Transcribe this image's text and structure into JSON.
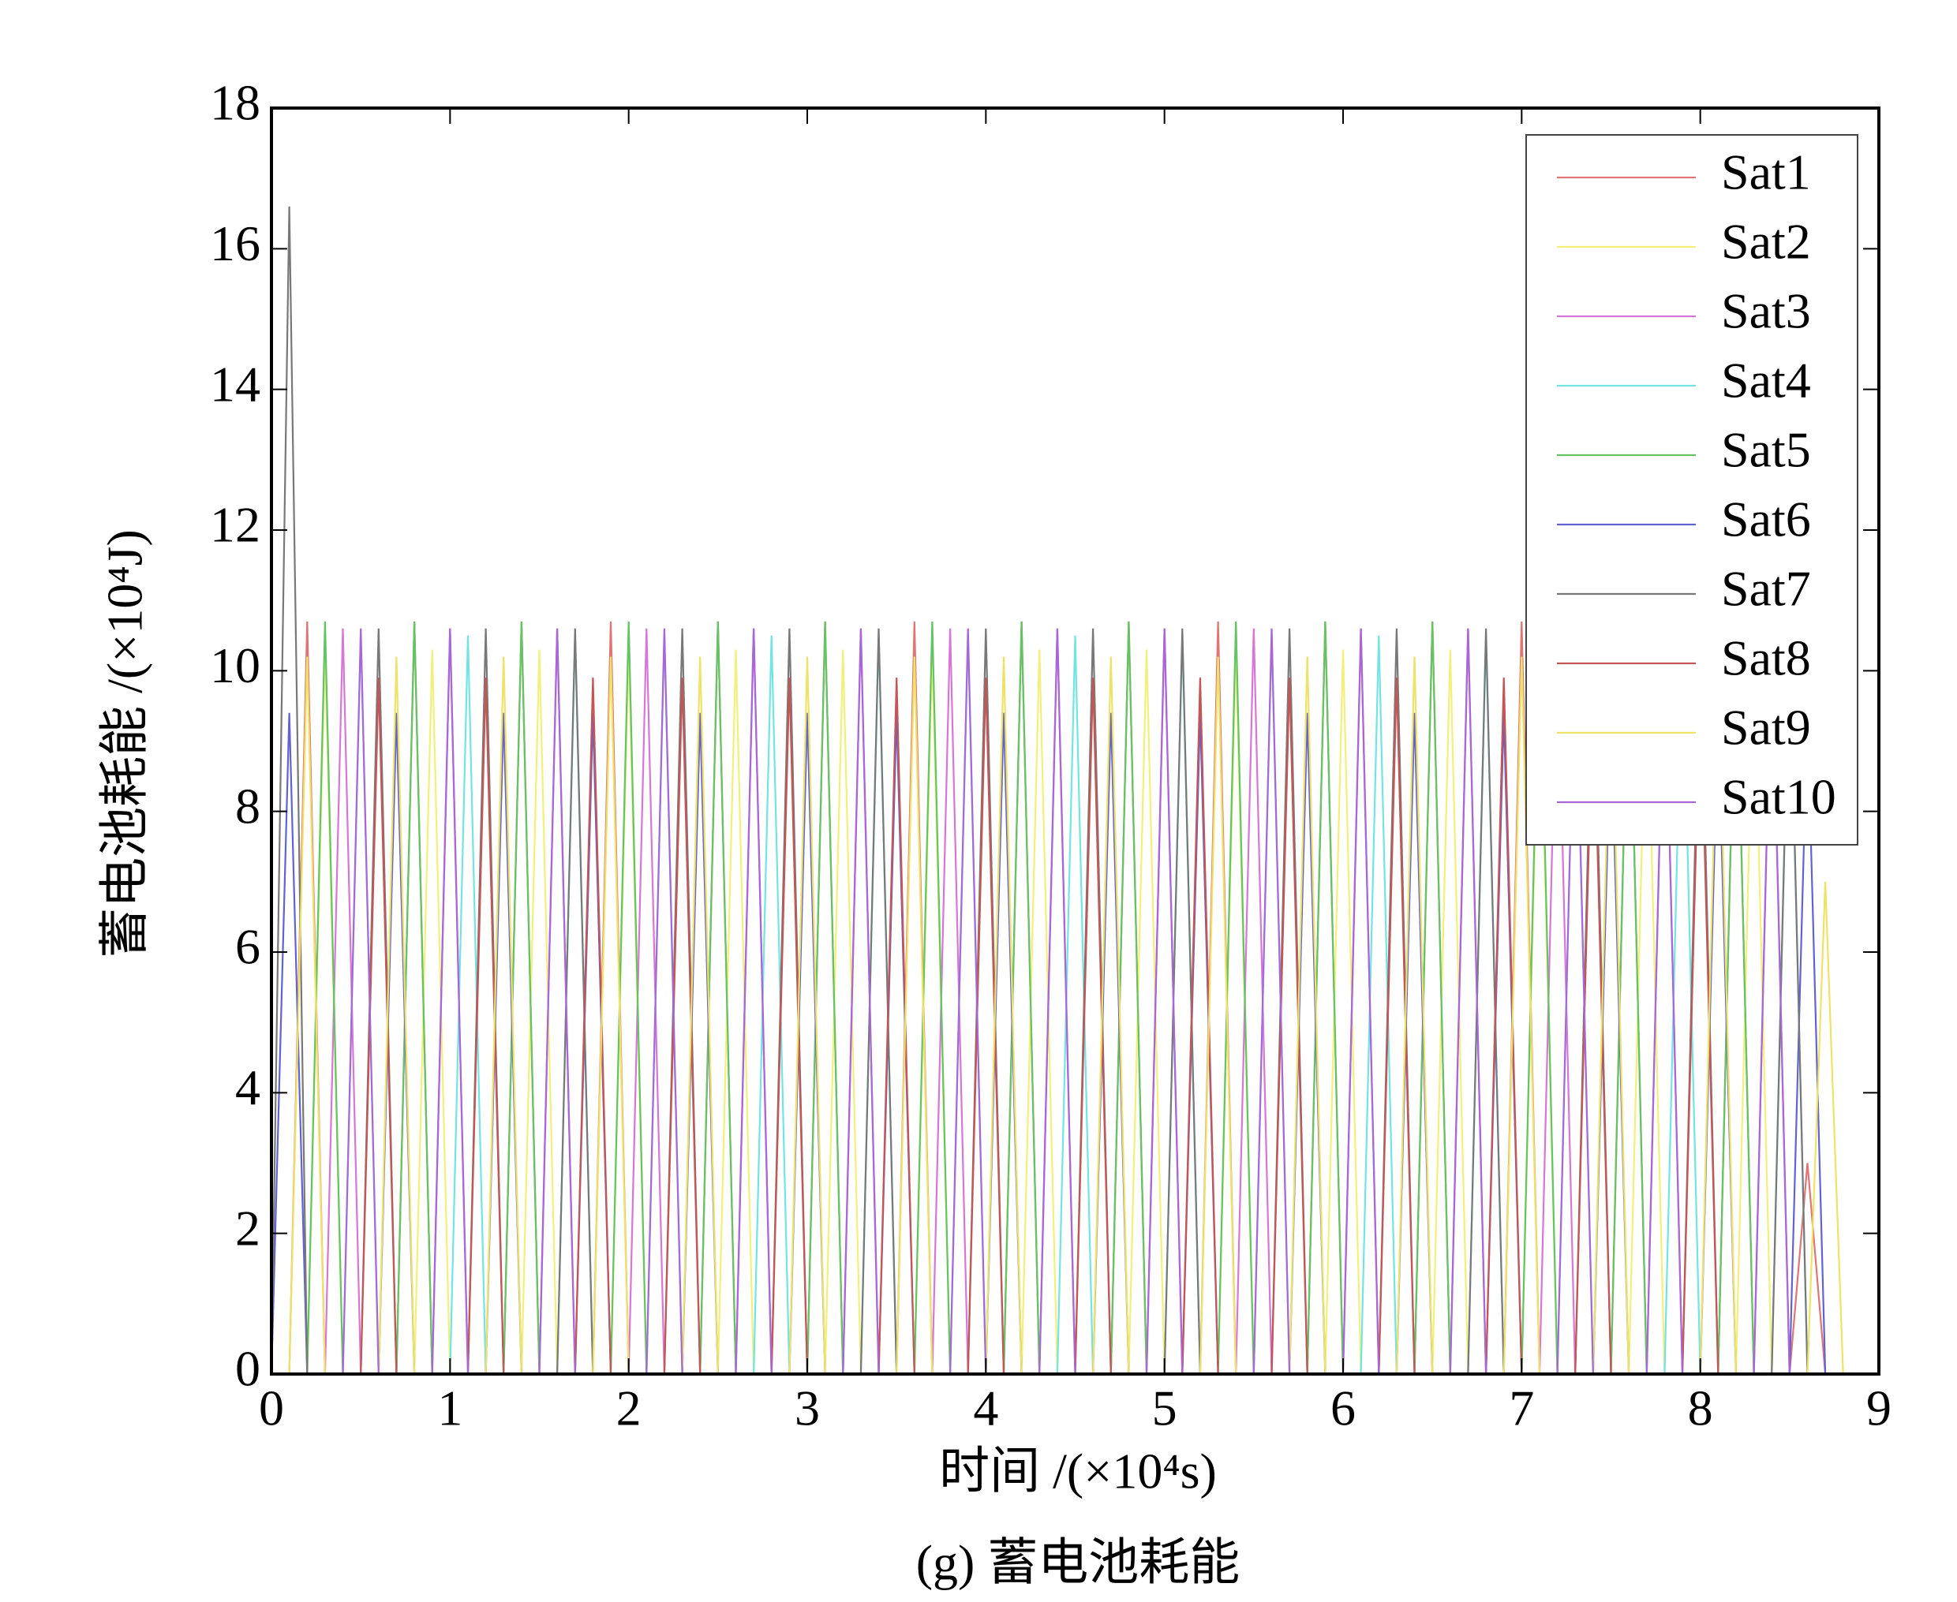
{
  "chart_data": {
    "type": "line",
    "x_label": "时间 /(×10⁴s)",
    "y_label": "蓄电池耗能 /(×10⁴J)",
    "caption": "(g) 蓄电池耗能",
    "xlim": [
      0,
      9
    ],
    "xticks": [
      0,
      1,
      2,
      3,
      4,
      5,
      6,
      7,
      8,
      9
    ],
    "ylim": [
      0,
      18
    ],
    "yticks": [
      0,
      2,
      4,
      6,
      8,
      10,
      12,
      14,
      16,
      18
    ],
    "legend": "upper right",
    "x": [
      0,
      0.1,
      0.2,
      0.3,
      0.4,
      0.5,
      0.6,
      0.7,
      0.8,
      0.9,
      1,
      1.1,
      1.2,
      1.3,
      1.4,
      1.5,
      1.6,
      1.7,
      1.8,
      1.9,
      2,
      2.1,
      2.2,
      2.3,
      2.4,
      2.5,
      2.6,
      2.7,
      2.8,
      2.9,
      3,
      3.1,
      3.2,
      3.3,
      3.4,
      3.5,
      3.6,
      3.7,
      3.8,
      3.9,
      4,
      4.1,
      4.2,
      4.3,
      4.4,
      4.5,
      4.6,
      4.7,
      4.8,
      4.9,
      5,
      5.1,
      5.2,
      5.3,
      5.4,
      5.5,
      5.6,
      5.7,
      5.8,
      5.9,
      6,
      6.1,
      6.2,
      6.3,
      6.4,
      6.5,
      6.6,
      6.7,
      6.8,
      6.9,
      7,
      7.1,
      7.2,
      7.3,
      7.4,
      7.5,
      7.6,
      7.7,
      7.8,
      7.9,
      8,
      8.1,
      8.2,
      8.3,
      8.4,
      8.5,
      8.6,
      8.7,
      8.8
    ],
    "series": [
      {
        "name": "Sat1",
        "color": "#e07575",
        "values": [
          0,
          0,
          10.7,
          0,
          0,
          0,
          0,
          0,
          10.7,
          0,
          0,
          0,
          0,
          0,
          10.7,
          0,
          0,
          0,
          0,
          10.7,
          0,
          0,
          0,
          0,
          0,
          10.7,
          0,
          0,
          0,
          0,
          0,
          10.7,
          0,
          0,
          0,
          0,
          10.7,
          0,
          0,
          0,
          0,
          0,
          10.7,
          0,
          0,
          0,
          0,
          0,
          10.7,
          0,
          0,
          0,
          0,
          10.7,
          0,
          0,
          0,
          0,
          0,
          10.7,
          0,
          0,
          0,
          0,
          0,
          10.7,
          0,
          0,
          0,
          0,
          10.7,
          0,
          0,
          0,
          0,
          0,
          10.7,
          0,
          0,
          0,
          0,
          0,
          10.7,
          0,
          0,
          0,
          3,
          0,
          0
        ]
      },
      {
        "name": "Sat2",
        "color": "#f2f07a",
        "values": [
          0,
          0,
          0,
          10.3,
          0,
          0,
          0,
          0,
          0,
          10.3,
          0,
          0,
          0,
          0,
          0,
          10.3,
          0,
          0,
          0,
          0,
          10.3,
          0,
          0,
          0,
          0,
          0,
          10.3,
          0,
          0,
          0,
          0,
          0,
          10.3,
          0,
          0,
          0,
          0,
          10.3,
          0,
          0,
          0,
          0,
          0,
          10.3,
          0,
          0,
          0,
          0,
          0,
          10.3,
          0,
          0,
          0,
          0,
          10.3,
          0,
          0,
          0,
          0,
          0,
          10.3,
          0,
          0,
          0,
          0,
          0,
          10.3,
          0,
          0,
          0,
          0,
          10.3,
          0,
          0,
          0,
          0,
          0,
          10.3,
          0,
          0,
          0,
          0,
          0,
          10.3,
          0,
          0,
          0,
          0,
          0
        ]
      },
      {
        "name": "Sat3",
        "color": "#d776d7",
        "values": [
          0,
          0,
          0,
          0,
          10.6,
          0,
          0,
          0,
          0,
          0,
          10.6,
          0,
          0,
          0,
          0,
          0,
          10.6,
          0,
          0,
          0,
          0,
          10.6,
          0,
          0,
          0,
          0,
          0,
          10.6,
          0,
          0,
          0,
          0,
          0,
          10.6,
          0,
          0,
          0,
          0,
          10.6,
          0,
          0,
          0,
          0,
          0,
          10.6,
          0,
          0,
          0,
          0,
          0,
          10.6,
          0,
          0,
          0,
          0,
          10.6,
          0,
          0,
          0,
          0,
          0,
          10.6,
          0,
          0,
          0,
          0,
          0,
          10.6,
          0,
          0,
          0,
          0,
          10.6,
          0,
          0,
          0,
          0,
          0,
          10.6,
          0,
          0,
          0,
          0,
          0,
          10.6,
          0,
          0,
          0,
          0
        ]
      },
      {
        "name": "Sat4",
        "color": "#72e4e4",
        "values": [
          0,
          0,
          0,
          0,
          0,
          10.5,
          0,
          0,
          0,
          0,
          0,
          10.5,
          0,
          0,
          0,
          0,
          0,
          10.5,
          0,
          0,
          0,
          0,
          10.5,
          0,
          0,
          0,
          0,
          0,
          10.5,
          0,
          0,
          0,
          0,
          0,
          10.5,
          0,
          0,
          0,
          0,
          10.5,
          0,
          0,
          0,
          0,
          0,
          10.5,
          0,
          0,
          0,
          0,
          0,
          10.5,
          0,
          0,
          0,
          0,
          10.5,
          0,
          0,
          0,
          0,
          0,
          10.5,
          0,
          0,
          0,
          0,
          0,
          10.5,
          0,
          0,
          0,
          0,
          10.5,
          0,
          0,
          0,
          0,
          0,
          10.5,
          0,
          0,
          0,
          0,
          0,
          10.5,
          0,
          0,
          0
        ]
      },
      {
        "name": "Sat5",
        "color": "#62c462",
        "values": [
          0,
          0,
          0,
          10.7,
          0,
          0,
          0,
          0,
          10.7,
          0,
          0,
          0,
          0,
          0,
          10.7,
          0,
          0,
          0,
          0,
          0,
          10.7,
          0,
          0,
          0,
          0,
          10.7,
          0,
          0,
          0,
          0,
          0,
          10.7,
          0,
          0,
          0,
          0,
          0,
          10.7,
          0,
          0,
          0,
          0,
          10.7,
          0,
          0,
          0,
          0,
          0,
          10.7,
          0,
          0,
          0,
          0,
          0,
          10.7,
          0,
          0,
          0,
          0,
          10.7,
          0,
          0,
          0,
          0,
          0,
          10.7,
          0,
          0,
          0,
          0,
          0,
          10.7,
          0,
          0,
          0,
          0,
          10.7,
          0,
          0,
          0,
          0,
          0,
          10.7,
          0,
          0,
          0,
          0,
          0,
          0
        ]
      },
      {
        "name": "Sat6",
        "color": "#6262d2",
        "values": [
          0,
          9.4,
          0,
          0,
          0,
          0,
          0,
          9.4,
          0,
          0,
          0,
          0,
          0,
          9.4,
          0,
          0,
          0,
          0,
          9.4,
          0,
          0,
          0,
          0,
          0,
          9.4,
          0,
          0,
          0,
          0,
          0,
          9.4,
          0,
          0,
          0,
          0,
          9.4,
          0,
          0,
          0,
          0,
          0,
          9.4,
          0,
          0,
          0,
          0,
          0,
          9.4,
          0,
          0,
          0,
          0,
          9.4,
          0,
          0,
          0,
          0,
          0,
          9.4,
          0,
          0,
          0,
          0,
          0,
          9.4,
          0,
          0,
          0,
          0,
          9.4,
          0,
          0,
          0,
          0,
          0,
          9.4,
          0,
          0,
          0,
          0,
          0,
          9.4,
          0,
          0,
          0,
          0,
          9.4,
          0,
          0
        ]
      },
      {
        "name": "Sat7",
        "color": "#787878",
        "values": [
          0,
          16.6,
          0,
          0,
          0,
          0,
          10.6,
          0,
          0,
          0,
          0,
          0,
          10.6,
          0,
          0,
          0,
          0,
          10.6,
          0,
          0,
          0,
          0,
          0,
          10.6,
          0,
          0,
          0,
          0,
          0,
          10.6,
          0,
          0,
          0,
          0,
          10.6,
          0,
          0,
          0,
          0,
          0,
          10.6,
          0,
          0,
          0,
          0,
          0,
          10.6,
          0,
          0,
          0,
          0,
          10.6,
          0,
          0,
          0,
          0,
          0,
          10.6,
          0,
          0,
          0,
          0,
          0,
          10.6,
          0,
          0,
          0,
          0,
          10.6,
          0,
          0,
          0,
          0,
          0,
          10.6,
          0,
          0,
          0,
          0,
          0,
          10.6,
          0,
          0,
          0,
          0,
          10.6,
          0,
          0,
          0
        ]
      },
      {
        "name": "Sat8",
        "color": "#c45656",
        "values": [
          0,
          0,
          0,
          0,
          0,
          0,
          9.9,
          0,
          0,
          0,
          0,
          0,
          9.9,
          0,
          0,
          0,
          0,
          0,
          9.9,
          0,
          0,
          0,
          0,
          9.9,
          0,
          0,
          0,
          0,
          0,
          9.9,
          0,
          0,
          0,
          0,
          0,
          9.9,
          0,
          0,
          0,
          0,
          9.9,
          0,
          0,
          0,
          0,
          0,
          9.9,
          0,
          0,
          0,
          0,
          0,
          9.9,
          0,
          0,
          0,
          0,
          9.9,
          0,
          0,
          0,
          0,
          0,
          9.9,
          0,
          0,
          0,
          0,
          0,
          9.9,
          0,
          0,
          0,
          0,
          9.9,
          0,
          0,
          0,
          0,
          0,
          9.9,
          0,
          0,
          0,
          0,
          0,
          0,
          0,
          0
        ]
      },
      {
        "name": "Sat9",
        "color": "#eee268",
        "values": [
          0,
          0,
          10.2,
          0,
          0,
          0,
          0,
          10.2,
          0,
          0,
          0,
          0,
          0,
          10.2,
          0,
          0,
          0,
          0,
          0,
          10.2,
          0,
          0,
          0,
          0,
          10.2,
          0,
          0,
          0,
          0,
          0,
          10.2,
          0,
          0,
          0,
          0,
          0,
          10.2,
          0,
          0,
          0,
          0,
          10.2,
          0,
          0,
          0,
          0,
          0,
          10.2,
          0,
          0,
          0,
          0,
          0,
          10.2,
          0,
          0,
          0,
          0,
          10.2,
          0,
          0,
          0,
          0,
          0,
          10.2,
          0,
          0,
          0,
          0,
          0,
          10.2,
          0,
          0,
          0,
          0,
          10.2,
          0,
          0,
          0,
          0,
          0,
          10.2,
          0,
          0,
          0,
          0,
          0,
          7,
          0
        ]
      },
      {
        "name": "Sat10",
        "color": "#a866d6",
        "values": [
          0,
          0,
          0,
          0,
          0,
          10.6,
          0,
          0,
          0,
          0,
          10.6,
          0,
          0,
          0,
          0,
          0,
          10.6,
          0,
          0,
          0,
          0,
          0,
          10.6,
          0,
          0,
          0,
          0,
          10.6,
          0,
          0,
          0,
          0,
          0,
          10.6,
          0,
          0,
          0,
          0,
          0,
          10.6,
          0,
          0,
          0,
          0,
          10.6,
          0,
          0,
          0,
          0,
          0,
          10.6,
          0,
          0,
          0,
          0,
          0,
          10.6,
          0,
          0,
          0,
          0,
          10.6,
          0,
          0,
          0,
          0,
          0,
          10.6,
          0,
          0,
          0,
          0,
          0,
          10.6,
          0,
          0,
          0,
          0,
          10.6,
          0,
          0,
          0,
          0,
          0,
          10.6,
          0,
          0,
          0,
          0
        ]
      }
    ]
  }
}
